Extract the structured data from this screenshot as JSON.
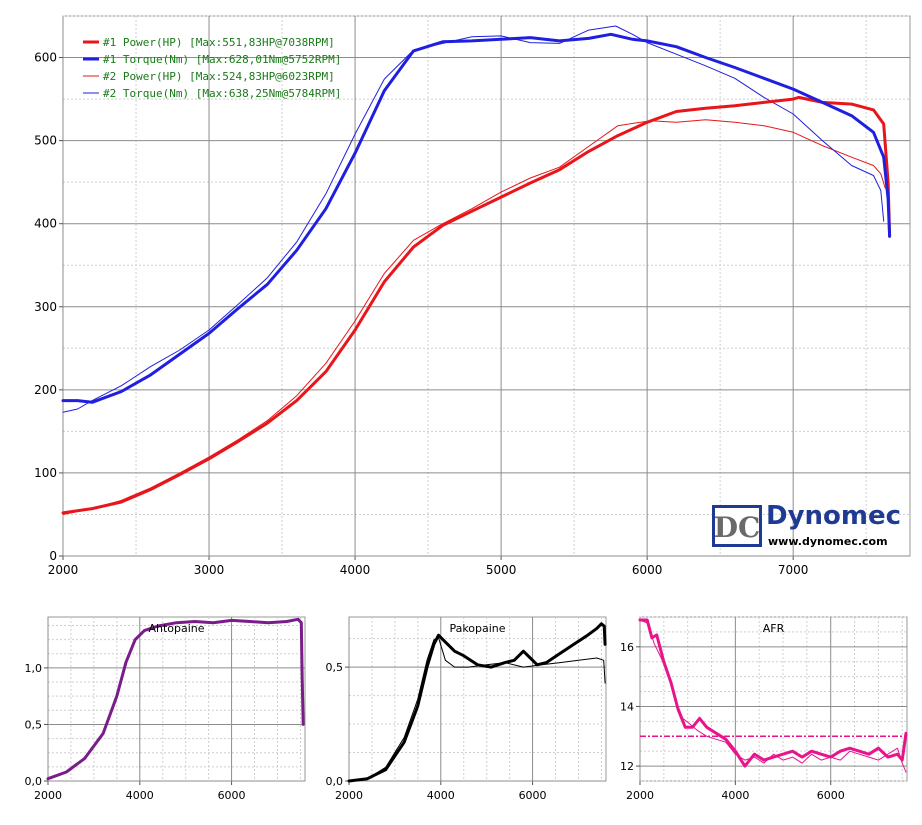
{
  "logo": {
    "brand": "Dynomec",
    "url": "www.dynomec.com",
    "mark": "DC"
  },
  "chart_data": [
    {
      "type": "line",
      "xlim": [
        2000,
        7800
      ],
      "ylim": [
        0,
        650
      ],
      "xticks": [
        2000,
        3000,
        4000,
        5000,
        6000,
        7000
      ],
      "yticks": [
        0,
        100,
        200,
        300,
        400,
        500,
        600
      ],
      "grid": true,
      "legend_placement": "top-left",
      "series": [
        {
          "name": "#1 Power(HP)",
          "legend": "#1 Power(HP)    [Max:551,83HP@7038RPM]",
          "color": "#e8161b",
          "width": 3,
          "x": [
            2000,
            2200,
            2400,
            2600,
            2800,
            3000,
            3200,
            3400,
            3600,
            3800,
            4000,
            4200,
            4400,
            4600,
            4800,
            5000,
            5200,
            5400,
            5600,
            5800,
            6000,
            6200,
            6400,
            6600,
            6800,
            7000,
            7038,
            7200,
            7400,
            7550,
            7620,
            7650,
            7660
          ],
          "y": [
            52,
            57,
            65,
            80,
            98,
            117,
            138,
            160,
            187,
            222,
            272,
            330,
            372,
            398,
            415,
            432,
            449,
            465,
            487,
            506,
            522,
            535,
            539,
            542,
            546,
            550,
            552,
            546,
            544,
            537,
            520,
            450,
            385
          ]
        },
        {
          "name": "#1 Torque(Nm)",
          "legend": "#1 Torque(Nm)   [Max:628,01Nm@5752RPM]",
          "color": "#1f1fe0",
          "width": 3,
          "x": [
            2000,
            2100,
            2200,
            2400,
            2600,
            2800,
            3000,
            3200,
            3400,
            3600,
            3800,
            4000,
            4200,
            4400,
            4600,
            4800,
            5000,
            5200,
            5400,
            5600,
            5752,
            5900,
            6000,
            6200,
            6400,
            6600,
            6800,
            7000,
            7200,
            7400,
            7550,
            7620,
            7650,
            7660
          ],
          "y": [
            187,
            187,
            185,
            198,
            218,
            243,
            268,
            298,
            327,
            368,
            418,
            485,
            560,
            608,
            619,
            620,
            622,
            624,
            620,
            623,
            628,
            622,
            620,
            613,
            600,
            588,
            575,
            562,
            546,
            530,
            510,
            480,
            430,
            385
          ]
        },
        {
          "name": "#2 Power(HP)",
          "legend": "#2 Power(HP)    [Max:524,83HP@6023RPM]",
          "color": "#e8161b",
          "width": 1,
          "x": [
            2000,
            2200,
            2400,
            2600,
            2800,
            3000,
            3200,
            3400,
            3600,
            3800,
            4000,
            4200,
            4400,
            4600,
            4800,
            5000,
            5200,
            5400,
            5600,
            5800,
            6023,
            6200,
            6400,
            6600,
            6800,
            7000,
            7200,
            7400,
            7550,
            7600,
            7630
          ],
          "y": [
            50,
            57,
            67,
            82,
            100,
            119,
            140,
            163,
            193,
            232,
            283,
            340,
            380,
            400,
            418,
            438,
            455,
            468,
            493,
            518,
            524,
            522,
            525,
            522,
            518,
            510,
            494,
            480,
            470,
            460,
            443
          ]
        },
        {
          "name": "#2 Torque(Nm)",
          "legend": "#2 Torque(Nm)   [Max:638,25Nm@5784RPM]",
          "color": "#1f1fe0",
          "width": 1,
          "x": [
            2000,
            2100,
            2200,
            2400,
            2600,
            2800,
            3000,
            3200,
            3400,
            3600,
            3800,
            4000,
            4200,
            4400,
            4600,
            4800,
            5000,
            5200,
            5400,
            5600,
            5784,
            5900,
            6000,
            6200,
            6400,
            6600,
            6800,
            7000,
            7200,
            7400,
            7550,
            7600,
            7620
          ],
          "y": [
            173,
            177,
            187,
            205,
            228,
            248,
            272,
            303,
            335,
            378,
            436,
            508,
            574,
            609,
            617,
            625,
            626,
            618,
            617,
            633,
            638,
            628,
            618,
            604,
            590,
            575,
            552,
            532,
            500,
            470,
            458,
            440,
            403
          ]
        }
      ]
    },
    {
      "type": "line",
      "title": "Ahtopaine",
      "xlim": [
        2000,
        7600
      ],
      "ylim": [
        0,
        1.45
      ],
      "xticks": [
        2000,
        4000,
        6000
      ],
      "yticks": [
        0,
        0.5,
        1
      ],
      "ytick_labels": [
        "0,0",
        "0,5",
        "1,0"
      ],
      "grid": true,
      "series": [
        {
          "color": "#7a1c8a",
          "width": 3,
          "x": [
            2000,
            2400,
            2800,
            3200,
            3500,
            3700,
            3900,
            4100,
            4400,
            4800,
            5200,
            5600,
            6000,
            6400,
            6800,
            7200,
            7450,
            7520,
            7540,
            7560
          ],
          "y": [
            0.02,
            0.08,
            0.2,
            0.42,
            0.75,
            1.05,
            1.25,
            1.33,
            1.37,
            1.4,
            1.41,
            1.4,
            1.42,
            1.41,
            1.4,
            1.41,
            1.43,
            1.4,
            0.9,
            0.5
          ]
        }
      ]
    },
    {
      "type": "line",
      "title": "Pakopaine",
      "xlim": [
        2000,
        7600
      ],
      "ylim": [
        0,
        0.72
      ],
      "xticks": [
        2000,
        4000,
        6000
      ],
      "yticks": [
        0,
        0.5
      ],
      "ytick_labels": [
        "0,0",
        "0,5"
      ],
      "grid": true,
      "series": [
        {
          "color": "#000000",
          "width": 3,
          "x": [
            2000,
            2400,
            2800,
            3200,
            3500,
            3700,
            3850,
            3950,
            4100,
            4300,
            4500,
            4800,
            5100,
            5400,
            5600,
            5800,
            5950,
            6100,
            6300,
            6600,
            6900,
            7200,
            7400,
            7500,
            7560,
            7580
          ],
          "y": [
            0.0,
            0.01,
            0.05,
            0.17,
            0.33,
            0.5,
            0.6,
            0.64,
            0.61,
            0.57,
            0.55,
            0.51,
            0.5,
            0.52,
            0.53,
            0.57,
            0.54,
            0.51,
            0.52,
            0.56,
            0.6,
            0.64,
            0.67,
            0.69,
            0.68,
            0.6
          ]
        },
        {
          "color": "#000000",
          "width": 1,
          "x": [
            2000,
            2400,
            2800,
            3200,
            3500,
            3700,
            3850,
            3950,
            4100,
            4300,
            4600,
            5000,
            5400,
            5800,
            6200,
            6600,
            7000,
            7400,
            7550,
            7580
          ],
          "y": [
            0.0,
            0.01,
            0.06,
            0.19,
            0.36,
            0.53,
            0.62,
            0.63,
            0.53,
            0.5,
            0.5,
            0.51,
            0.52,
            0.5,
            0.51,
            0.52,
            0.53,
            0.54,
            0.53,
            0.43
          ]
        }
      ]
    },
    {
      "type": "line",
      "title": "AFR",
      "xlim": [
        2000,
        7600
      ],
      "ylim": [
        11.5,
        17
      ],
      "xticks": [
        2000,
        4000,
        6000
      ],
      "yticks": [
        12,
        14,
        16
      ],
      "grid": true,
      "reference_line": {
        "y": 13,
        "color": "#e8148c"
      },
      "series": [
        {
          "color": "#e8148c",
          "width": 3,
          "x": [
            2000,
            2150,
            2250,
            2350,
            2500,
            2650,
            2800,
            2950,
            3100,
            3250,
            3400,
            3600,
            3800,
            4000,
            4200,
            4400,
            4600,
            4800,
            5000,
            5200,
            5400,
            5600,
            5800,
            6000,
            6200,
            6400,
            6600,
            6800,
            7000,
            7200,
            7400,
            7500,
            7580
          ],
          "y": [
            16.9,
            16.9,
            16.3,
            16.4,
            15.5,
            14.8,
            13.9,
            13.3,
            13.3,
            13.6,
            13.3,
            13.1,
            12.9,
            12.5,
            12.0,
            12.4,
            12.2,
            12.3,
            12.4,
            12.5,
            12.3,
            12.5,
            12.4,
            12.3,
            12.5,
            12.6,
            12.5,
            12.4,
            12.6,
            12.3,
            12.4,
            12.2,
            13.1
          ]
        },
        {
          "color": "#e8148c",
          "width": 1,
          "x": [
            2000,
            2150,
            2300,
            2450,
            2600,
            2750,
            2900,
            3050,
            3200,
            3400,
            3600,
            3800,
            4000,
            4200,
            4400,
            4600,
            4800,
            5000,
            5200,
            5400,
            5600,
            5800,
            6000,
            6200,
            6400,
            6600,
            6800,
            7000,
            7200,
            7400,
            7500,
            7580
          ],
          "y": [
            16.9,
            16.8,
            16.1,
            15.6,
            15.0,
            14.2,
            13.6,
            13.4,
            13.2,
            13.0,
            12.9,
            12.8,
            12.4,
            12.2,
            12.3,
            12.1,
            12.4,
            12.2,
            12.3,
            12.1,
            12.4,
            12.2,
            12.3,
            12.2,
            12.5,
            12.4,
            12.3,
            12.2,
            12.4,
            12.6,
            12.1,
            11.8
          ]
        }
      ]
    }
  ]
}
